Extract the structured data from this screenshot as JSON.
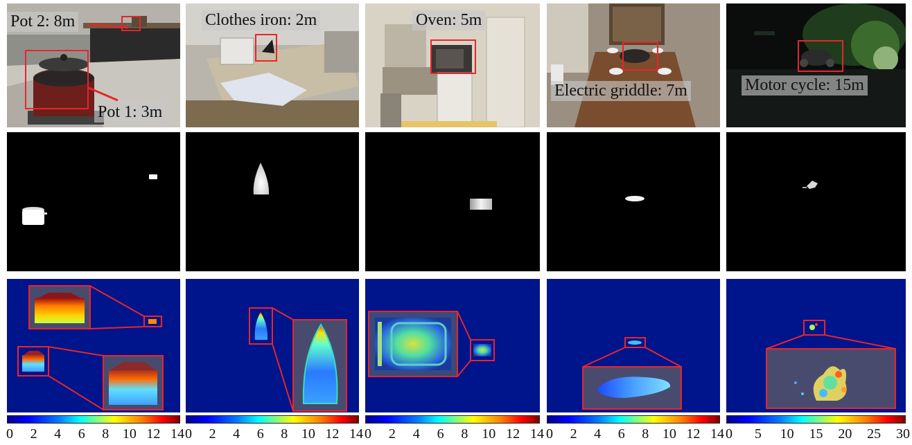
{
  "figure": {
    "columns": [
      {
        "id": "pot",
        "captions": [
          "Pot 2: 8m",
          "Pot 1: 3m"
        ],
        "colorbar_ticks": [
          "0",
          "2",
          "4",
          "6",
          "8",
          "10",
          "12",
          "14"
        ]
      },
      {
        "id": "iron",
        "captions": [
          "Clothes iron: 2m"
        ],
        "colorbar_ticks": [
          "0",
          "2",
          "4",
          "6",
          "8",
          "10",
          "12",
          "14"
        ]
      },
      {
        "id": "oven",
        "captions": [
          "Oven: 5m"
        ],
        "colorbar_ticks": [
          "0",
          "2",
          "4",
          "6",
          "8",
          "10",
          "12",
          "14"
        ]
      },
      {
        "id": "griddle",
        "captions": [
          "Electric griddle: 7m"
        ],
        "colorbar_ticks": [
          "0",
          "2",
          "4",
          "6",
          "8",
          "10",
          "12",
          "14"
        ]
      },
      {
        "id": "motorcycle",
        "captions": [
          "Motor cycle: 15m"
        ],
        "colorbar_ticks": [
          "0",
          "5",
          "10",
          "15",
          "20",
          "25",
          "30"
        ]
      }
    ],
    "colors": {
      "box": "#e6262b",
      "heat_bg": "#00148c",
      "mask_bg": "#000000",
      "mask_fg": "#ffffff"
    }
  }
}
